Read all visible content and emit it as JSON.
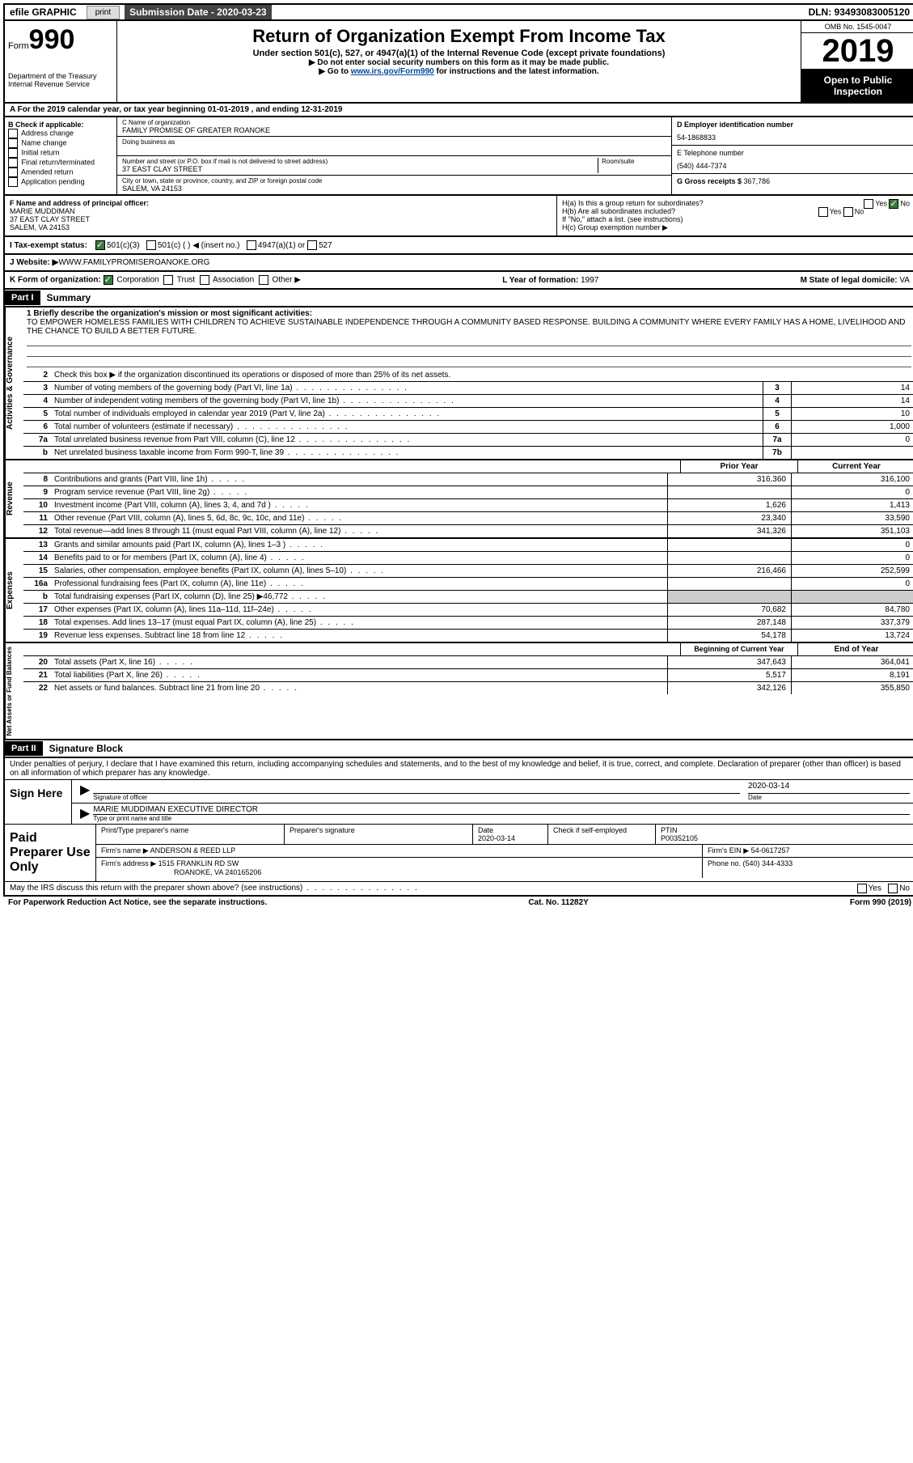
{
  "topbar": {
    "efile": "efile GRAPHIC",
    "print": "print",
    "subdate_label": "Submission Date - ",
    "subdate": "2020-03-23",
    "dln": "DLN: 93493083005120"
  },
  "header": {
    "form_prefix": "Form",
    "form_num": "990",
    "dept": "Department of the Treasury\nInternal Revenue Service",
    "title": "Return of Organization Exempt From Income Tax",
    "sub1": "Under section 501(c), 527, or 4947(a)(1) of the Internal Revenue Code (except private foundations)",
    "sub2": "▶ Do not enter social security numbers on this form as it may be made public.",
    "sub3a": "▶ Go to ",
    "sub3_link": "www.irs.gov/Form990",
    "sub3b": " for instructions and the latest information.",
    "omb": "OMB No. 1545-0047",
    "year": "2019",
    "open": "Open to Public Inspection"
  },
  "row_a": "A  For the 2019 calendar year, or tax year beginning 01-01-2019   , and ending 12-31-2019",
  "col_b": {
    "label": "B Check if applicable:",
    "opts": [
      "Address change",
      "Name change",
      "Initial return",
      "Final return/terminated",
      "Amended return",
      "Application pending"
    ]
  },
  "col_c": {
    "name_label": "C Name of organization",
    "name": "FAMILY PROMISE OF GREATER ROANOKE",
    "dba": "Doing business as",
    "addr_label": "Number and street (or P.O. box if mail is not delivered to street address)",
    "room_label": "Room/suite",
    "addr": "37 EAST CLAY STREET",
    "city_label": "City or town, state or province, country, and ZIP or foreign postal code",
    "city": "SALEM, VA  24153"
  },
  "col_de": {
    "d_label": "D Employer identification number",
    "d_val": "54-1868833",
    "e_label": "E Telephone number",
    "e_val": "(540) 444-7374",
    "g_label": "G Gross receipts $ ",
    "g_val": "367,786"
  },
  "f_block": {
    "f_label": "F  Name and address of principal officer:",
    "f_name": "MARIE MUDDIMAN",
    "f_addr1": "37 EAST CLAY STREET",
    "f_addr2": "SALEM, VA  24153"
  },
  "h_block": {
    "ha": "H(a)  Is this a group return for subordinates?",
    "hb": "H(b)  Are all subordinates included?",
    "hb_note": "If \"No,\" attach a list. (see instructions)",
    "hc": "H(c)  Group exemption number ▶",
    "yes": "Yes",
    "no": "No"
  },
  "status_row": {
    "label": "I  Tax-exempt status:",
    "opt1": "501(c)(3)",
    "opt2": "501(c) (  ) ◀ (insert no.)",
    "opt3": "4947(a)(1) or",
    "opt4": "527"
  },
  "website_row": {
    "label": "J  Website: ▶ ",
    "val": "WWW.FAMILYPROMISEROANOKE.ORG"
  },
  "k_row": {
    "k_label": "K Form of organization:",
    "k_opts": [
      "Corporation",
      "Trust",
      "Association",
      "Other ▶"
    ],
    "l_label": "L Year of formation: ",
    "l_val": "1997",
    "m_label": "M State of legal domicile: ",
    "m_val": "VA"
  },
  "part1": {
    "header": "Part I",
    "title": "Summary",
    "line1_label": "1  Briefly describe the organization's mission or most significant activities:",
    "mission": "TO EMPOWER HOMELESS FAMILIES WITH CHILDREN TO ACHIEVE SUSTAINABLE INDEPENDENCE THROUGH A COMMUNITY BASED RESPONSE. BUILDING A COMMUNITY WHERE EVERY FAMILY HAS A HOME, LIVELIHOOD AND THE CHANCE TO BUILD A BETTER FUTURE.",
    "line2": "Check this box ▶        if the organization discontinued its operations or disposed of more than 25% of its net assets.",
    "lines_gov": [
      {
        "n": "3",
        "t": "Number of voting members of the governing body (Part VI, line 1a)",
        "r": "3",
        "v": "14"
      },
      {
        "n": "4",
        "t": "Number of independent voting members of the governing body (Part VI, line 1b)",
        "r": "4",
        "v": "14"
      },
      {
        "n": "5",
        "t": "Total number of individuals employed in calendar year 2019 (Part V, line 2a)",
        "r": "5",
        "v": "10"
      },
      {
        "n": "6",
        "t": "Total number of volunteers (estimate if necessary)",
        "r": "6",
        "v": "1,000"
      },
      {
        "n": "7a",
        "t": "Total unrelated business revenue from Part VIII, column (C), line 12",
        "r": "7a",
        "v": "0"
      },
      {
        "n": "b",
        "t": "Net unrelated business taxable income from Form 990-T, line 39",
        "r": "7b",
        "v": ""
      }
    ],
    "prior_label": "Prior Year",
    "current_label": "Current Year",
    "lines_rev": [
      {
        "n": "8",
        "t": "Contributions and grants (Part VIII, line 1h)",
        "p": "316,360",
        "c": "316,100"
      },
      {
        "n": "9",
        "t": "Program service revenue (Part VIII, line 2g)",
        "p": "",
        "c": "0"
      },
      {
        "n": "10",
        "t": "Investment income (Part VIII, column (A), lines 3, 4, and 7d )",
        "p": "1,626",
        "c": "1,413"
      },
      {
        "n": "11",
        "t": "Other revenue (Part VIII, column (A), lines 5, 6d, 8c, 9c, 10c, and 11e)",
        "p": "23,340",
        "c": "33,590"
      },
      {
        "n": "12",
        "t": "Total revenue—add lines 8 through 11 (must equal Part VIII, column (A), line 12)",
        "p": "341,326",
        "c": "351,103"
      }
    ],
    "lines_exp": [
      {
        "n": "13",
        "t": "Grants and similar amounts paid (Part IX, column (A), lines 1–3 )",
        "p": "",
        "c": "0"
      },
      {
        "n": "14",
        "t": "Benefits paid to or for members (Part IX, column (A), line 4)",
        "p": "",
        "c": "0"
      },
      {
        "n": "15",
        "t": "Salaries, other compensation, employee benefits (Part IX, column (A), lines 5–10)",
        "p": "216,466",
        "c": "252,599"
      },
      {
        "n": "16a",
        "t": "Professional fundraising fees (Part IX, column (A), line 11e)",
        "p": "",
        "c": "0"
      },
      {
        "n": "b",
        "t": "Total fundraising expenses (Part IX, column (D), line 25) ▶46,772",
        "p": "shaded",
        "c": "shaded"
      },
      {
        "n": "17",
        "t": "Other expenses (Part IX, column (A), lines 11a–11d, 11f–24e)",
        "p": "70,682",
        "c": "84,780"
      },
      {
        "n": "18",
        "t": "Total expenses. Add lines 13–17 (must equal Part IX, column (A), line 25)",
        "p": "287,148",
        "c": "337,379"
      },
      {
        "n": "19",
        "t": "Revenue less expenses. Subtract line 18 from line 12",
        "p": "54,178",
        "c": "13,724"
      }
    ],
    "begin_label": "Beginning of Current Year",
    "end_label": "End of Year",
    "lines_net": [
      {
        "n": "20",
        "t": "Total assets (Part X, line 16)",
        "p": "347,643",
        "c": "364,041"
      },
      {
        "n": "21",
        "t": "Total liabilities (Part X, line 26)",
        "p": "5,517",
        "c": "8,191"
      },
      {
        "n": "22",
        "t": "Net assets or fund balances. Subtract line 21 from line 20",
        "p": "342,126",
        "c": "355,850"
      }
    ],
    "side_gov": "Activities & Governance",
    "side_rev": "Revenue",
    "side_exp": "Expenses",
    "side_net": "Net Assets or Fund Balances"
  },
  "part2": {
    "header": "Part II",
    "title": "Signature Block",
    "para": "Under penalties of perjury, I declare that I have examined this return, including accompanying schedules and statements, and to the best of my knowledge and belief, it is true, correct, and complete. Declaration of preparer (other than officer) is based on all information of which preparer has any knowledge.",
    "sign_here": "Sign Here",
    "sig_officer_label": "Signature of officer",
    "sig_date": "2020-03-14",
    "date_label": "Date",
    "officer_name": "MARIE MUDDIMAN  EXECUTIVE DIRECTOR",
    "officer_type_label": "Type or print name and title",
    "paid_label": "Paid Preparer Use Only",
    "prep_name_label": "Print/Type preparer's name",
    "prep_sig_label": "Preparer's signature",
    "prep_date_label": "Date",
    "prep_date": "2020-03-14",
    "check_self": "Check        if self-employed",
    "ptin_label": "PTIN",
    "ptin": "P00352105",
    "firm_name_label": "Firm's name    ▶ ",
    "firm_name": "ANDERSON & REED LLP",
    "firm_ein_label": "Firm's EIN ▶ ",
    "firm_ein": "54-0617257",
    "firm_addr_label": "Firm's address ▶ ",
    "firm_addr1": "1515 FRANKLIN RD SW",
    "firm_addr2": "ROANOKE, VA  240165206",
    "phone_label": "Phone no. ",
    "phone": "(540) 344-4333",
    "discuss": "May the IRS discuss this return with the preparer shown above? (see instructions)",
    "yes": "Yes",
    "no": "No"
  },
  "footer": {
    "left": "For Paperwork Reduction Act Notice, see the separate instructions.",
    "center": "Cat. No. 11282Y",
    "right": "Form 990 (2019)"
  }
}
